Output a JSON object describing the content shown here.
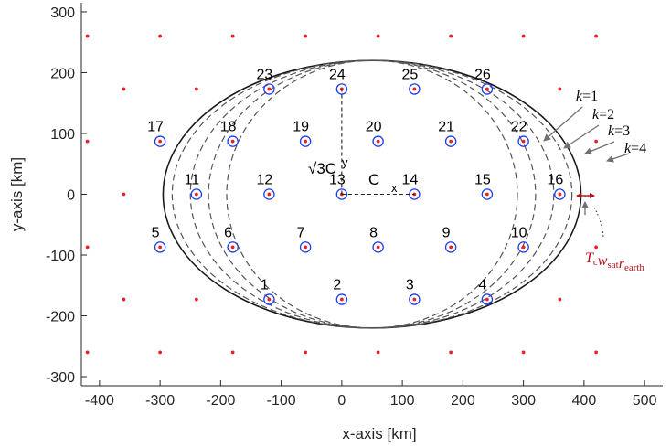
{
  "chart_data": {
    "type": "scatter",
    "xlabel": "x-axis [km]",
    "ylabel": "y-axis [km]",
    "xlim": [
      -430,
      530
    ],
    "ylim": [
      -315,
      315
    ],
    "xticks": [
      -400,
      -300,
      -200,
      -100,
      0,
      100,
      200,
      300,
      400,
      500
    ],
    "yticks": [
      -300,
      -200,
      -100,
      0,
      100,
      200,
      300
    ],
    "grid": false,
    "colors": {
      "red_point": "#e8202a",
      "blue_circle": "#1f3ff2",
      "axis": "#262626",
      "annotation_red": "#b3141c",
      "arrow": "#707070"
    },
    "red_grid_points": {
      "columns": [
        {
          "x": -420,
          "y": [
            -260,
            -87,
            87,
            260
          ]
        },
        {
          "x": -360,
          "y": [
            -173,
            0,
            173
          ]
        },
        {
          "x": -300,
          "y": [
            -260,
            -87,
            87,
            260
          ]
        },
        {
          "x": -240,
          "y": [
            -173,
            0,
            173
          ]
        },
        {
          "x": -180,
          "y": [
            -260,
            -87,
            87,
            260
          ]
        },
        {
          "x": -120,
          "y": [
            -173,
            0,
            173
          ]
        },
        {
          "x": -60,
          "y": [
            -260,
            -87,
            87,
            260
          ]
        },
        {
          "x": 0,
          "y": [
            -173,
            0,
            173
          ]
        },
        {
          "x": 60,
          "y": [
            -260,
            -87,
            87,
            260
          ]
        },
        {
          "x": 120,
          "y": [
            -173,
            0,
            173
          ]
        },
        {
          "x": 180,
          "y": [
            -260,
            -87,
            87,
            260
          ]
        },
        {
          "x": 240,
          "y": [
            -173,
            0,
            173
          ]
        },
        {
          "x": 300,
          "y": [
            -260,
            -87,
            87,
            260
          ]
        },
        {
          "x": 360,
          "y": [
            -173,
            0,
            173
          ]
        },
        {
          "x": 420,
          "y": [
            -260,
            -87,
            87,
            260
          ]
        }
      ]
    },
    "beams": [
      {
        "label": "1",
        "x": -120,
        "y": -173
      },
      {
        "label": "2",
        "x": 0,
        "y": -173
      },
      {
        "label": "3",
        "x": 120,
        "y": -173
      },
      {
        "label": "4",
        "x": 240,
        "y": -173
      },
      {
        "label": "5",
        "x": -300,
        "y": -87
      },
      {
        "label": "6",
        "x": -180,
        "y": -87
      },
      {
        "label": "7",
        "x": -60,
        "y": -87
      },
      {
        "label": "8",
        "x": 60,
        "y": -87
      },
      {
        "label": "9",
        "x": 180,
        "y": -87
      },
      {
        "label": "10",
        "x": 300,
        "y": -87
      },
      {
        "label": "11",
        "x": -240,
        "y": 0
      },
      {
        "label": "12",
        "x": -120,
        "y": 0
      },
      {
        "label": "13",
        "x": 0,
        "y": 0
      },
      {
        "label": "14",
        "x": 120,
        "y": 0
      },
      {
        "label": "15",
        "x": 240,
        "y": 0
      },
      {
        "label": "16",
        "x": 360,
        "y": 0
      },
      {
        "label": "17",
        "x": -300,
        "y": 87
      },
      {
        "label": "18",
        "x": -180,
        "y": 87
      },
      {
        "label": "19",
        "x": -60,
        "y": 87
      },
      {
        "label": "20",
        "x": 60,
        "y": 87
      },
      {
        "label": "21",
        "x": 180,
        "y": 87
      },
      {
        "label": "22",
        "x": 300,
        "y": 87
      },
      {
        "label": "23",
        "x": -120,
        "y": 173
      },
      {
        "label": "24",
        "x": 0,
        "y": 173
      },
      {
        "label": "25",
        "x": 120,
        "y": 173
      },
      {
        "label": "26",
        "x": 240,
        "y": 173
      }
    ],
    "ellipses": [
      {
        "style": "solid",
        "cx": 50,
        "cy": 0,
        "rx": 345,
        "ry": 220
      },
      {
        "style": "dashed",
        "cx": 50,
        "cy": 0,
        "rx": 330,
        "ry": 220
      },
      {
        "style": "dashed",
        "cx": 50,
        "cy": 0,
        "rx": 300,
        "ry": 220
      },
      {
        "style": "dashed",
        "cx": 50,
        "cy": 0,
        "rx": 270,
        "ry": 220
      },
      {
        "style": "dashed",
        "cx": 50,
        "cy": 0,
        "rx": 240,
        "ry": 220
      }
    ],
    "annotations": {
      "cy_text": "√3C",
      "cy_sub": "y",
      "cx_text": "C",
      "cx_sub": "x",
      "k_labels": [
        {
          "prefix": "k",
          "value": "=1"
        },
        {
          "prefix": "k",
          "value": "=2"
        },
        {
          "prefix": "k",
          "value": "=3"
        },
        {
          "prefix": "k",
          "value": "=4"
        }
      ],
      "tw_label": {
        "T": "T",
        "c": "c",
        "w": "w",
        "sat": "sat",
        "r": "r",
        "earth": "earth"
      }
    }
  }
}
